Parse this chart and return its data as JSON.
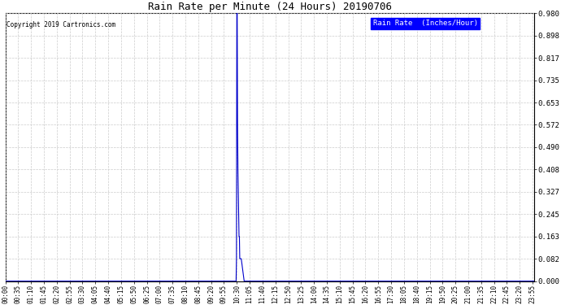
{
  "title": "Rain Rate per Minute (24 Hours) 20190706",
  "copyright_text": "Copyright 2019 Cartronics.com",
  "legend_label": "Rain Rate  (Inches/Hour)",
  "ylabel_ticks": [
    0.0,
    0.082,
    0.163,
    0.245,
    0.327,
    0.408,
    0.49,
    0.572,
    0.653,
    0.735,
    0.817,
    0.898,
    0.98
  ],
  "ylim": [
    0.0,
    0.98
  ],
  "line_color": "#0000cc",
  "background_color": "#ffffff",
  "plot_bg_color": "#ffffff",
  "grid_color": "#cccccc",
  "legend_bg_color": "#0000ff",
  "legend_text_color": "#ffffff",
  "total_minutes": 1440,
  "spike_peak_minute": 630,
  "spike_peak_value": 0.98,
  "x_tick_labels": [
    "00:00",
    "00:35",
    "01:10",
    "01:45",
    "02:20",
    "02:55",
    "03:30",
    "04:05",
    "04:40",
    "05:15",
    "05:50",
    "06:25",
    "07:00",
    "07:35",
    "08:10",
    "08:45",
    "09:20",
    "09:55",
    "10:30",
    "11:05",
    "11:40",
    "12:15",
    "12:50",
    "13:25",
    "14:00",
    "14:35",
    "15:10",
    "15:45",
    "16:20",
    "16:55",
    "17:30",
    "18:05",
    "18:40",
    "19:15",
    "19:50",
    "20:25",
    "21:00",
    "21:35",
    "22:10",
    "22:45",
    "23:20",
    "23:55"
  ],
  "x_tick_positions": [
    0,
    35,
    70,
    105,
    140,
    175,
    210,
    245,
    280,
    315,
    350,
    385,
    420,
    455,
    490,
    525,
    560,
    595,
    630,
    665,
    700,
    735,
    770,
    805,
    840,
    875,
    910,
    945,
    980,
    1015,
    1050,
    1085,
    1120,
    1155,
    1190,
    1225,
    1260,
    1295,
    1330,
    1365,
    1400,
    1435
  ]
}
